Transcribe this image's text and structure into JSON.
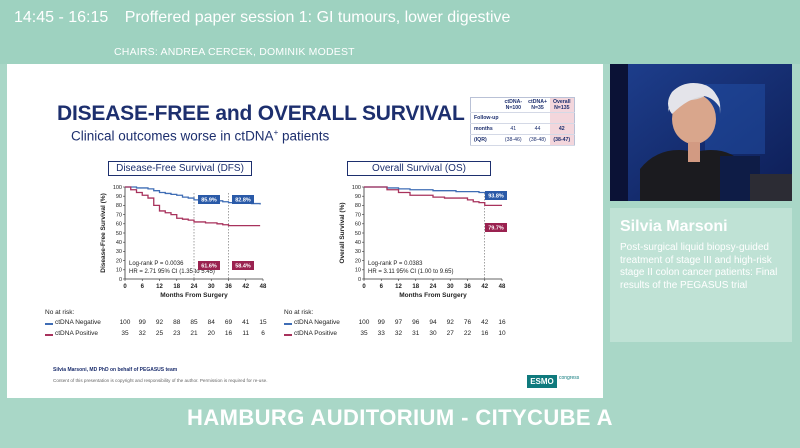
{
  "session": {
    "time": "14:45 - 16:15",
    "title": "Proffered paper session 1: GI tumours, lower digestive",
    "chairs": "CHAIRS: ANDREA CERCEK, DOMINIK MODEST"
  },
  "slide": {
    "title": "DISEASE-FREE and OVERALL SURVIVAL",
    "subtitle_pre": "Clinical outcomes worse in ctDNA",
    "subtitle_sup": "+",
    "subtitle_post": " patients",
    "followup_table": {
      "header": [
        "",
        "ctDNA-\nN=100",
        "ctDNA+\nN=35",
        "Overall\nN=135"
      ],
      "rows": [
        [
          "Follow-up",
          "",
          "",
          ""
        ],
        [
          "months",
          "41",
          "44",
          "42"
        ],
        [
          "(IQR)",
          "(38-46)",
          "(38-48)",
          "(38-47)"
        ]
      ]
    },
    "author": "Silvia Marsoni, MD PhD on behalf of PEGASUS team",
    "copyright": "Content of this presentation is copyright and responsibility of the author. Permission is required for re-use.",
    "logo_text": "ESMO",
    "logo_sub": "congress",
    "panels": [
      {
        "title": "Disease-Free Survival (DFS)",
        "ylabel": "Disease-Free Survival (%)",
        "xlabel": "Months From Surgery",
        "stats_line1": "Log-rank P = 0.0036",
        "stats_line2": "HR = 2.71 95% CI (1.35 to 5.45)",
        "badges": [
          {
            "text": "85.9%",
            "color": "#2a5aa8"
          },
          {
            "text": "82.8%",
            "color": "#2a5aa8"
          },
          {
            "text": "61.6%",
            "color": "#9a2250"
          },
          {
            "text": "58.4%",
            "color": "#9a2250"
          }
        ]
      },
      {
        "title": "Overall Survival (OS)",
        "ylabel": "Overall Survival (%)",
        "xlabel": "Months From Surgery",
        "stats_line1": "Log-rank P = 0.0383",
        "stats_line2": "HR = 3.11 95% CI (1.00 to 9.65)",
        "badges": [
          {
            "text": "93.8%",
            "color": "#2a5aa8"
          },
          {
            "text": "79.7%",
            "color": "#9a2250"
          }
        ]
      }
    ],
    "risk_tables": [
      {
        "header": "No at risk:",
        "rows": [
          {
            "label": "ctDNA Negative",
            "color": "#3f6db5",
            "values": [
              "100",
              "99",
              "92",
              "88",
              "85",
              "84",
              "69",
              "41",
              "15"
            ]
          },
          {
            "label": "ctDNA Positive",
            "color": "#a8325c",
            "values": [
              "35",
              "32",
              "25",
              "23",
              "21",
              "20",
              "16",
              "11",
              "6"
            ]
          }
        ]
      },
      {
        "header": "No at risk:",
        "rows": [
          {
            "label": "ctDNA Negative",
            "color": "#3f6db5",
            "values": [
              "100",
              "99",
              "97",
              "96",
              "94",
              "92",
              "76",
              "42",
              "16"
            ]
          },
          {
            "label": "ctDNA Positive",
            "color": "#a8325c",
            "values": [
              "35",
              "33",
              "32",
              "31",
              "30",
              "27",
              "22",
              "16",
              "10"
            ]
          }
        ]
      }
    ]
  },
  "chart_data": [
    {
      "type": "line",
      "title": "Disease-Free Survival (DFS)",
      "xlabel": "Months From Surgery",
      "ylabel": "Disease-Free Survival (%)",
      "xlim": [
        0,
        48
      ],
      "ylim": [
        0,
        100
      ],
      "xticks": [
        "0",
        "6",
        "12",
        "18",
        "24",
        "30",
        "36",
        "42",
        "48"
      ],
      "yticks": [
        "0",
        "10",
        "20",
        "30",
        "40",
        "50",
        "60",
        "70",
        "80",
        "90",
        "100"
      ],
      "series": [
        {
          "name": "ctDNA Negative",
          "color": "#3f6db5",
          "x": [
            0,
            2,
            4,
            6,
            8,
            10,
            12,
            14,
            16,
            18,
            20,
            22,
            24,
            26,
            28,
            30,
            32,
            34,
            36,
            38,
            40,
            42,
            44,
            46,
            47
          ],
          "y": [
            100,
            100,
            99,
            99,
            98,
            96,
            94,
            93,
            92,
            91,
            89,
            88,
            86,
            86,
            86,
            85,
            85,
            84,
            83,
            83,
            83,
            83,
            82,
            82,
            81
          ]
        },
        {
          "name": "ctDNA Positive",
          "color": "#a8325c",
          "x": [
            0,
            2,
            4,
            6,
            8,
            10,
            12,
            14,
            16,
            18,
            20,
            22,
            24,
            26,
            28,
            30,
            32,
            34,
            36,
            38,
            40,
            42,
            44,
            46,
            47
          ],
          "y": [
            100,
            97,
            94,
            91,
            88,
            80,
            74,
            72,
            70,
            66,
            65,
            64,
            62,
            62,
            61,
            61,
            60,
            59,
            58,
            58,
            58,
            58,
            58,
            58,
            58
          ]
        }
      ],
      "markers_x": [
        24,
        36
      ],
      "annotations": [
        "85.9%",
        "82.8%",
        "61.6%",
        "58.4%"
      ],
      "stats": [
        "Log-rank P = 0.0036",
        "HR = 2.71 95% CI (1.35 to 5.45)"
      ]
    },
    {
      "type": "line",
      "title": "Overall Survival (OS)",
      "xlabel": "Months From Surgery",
      "ylabel": "Overall Survival (%)",
      "xlim": [
        0,
        48
      ],
      "ylim": [
        0,
        100
      ],
      "xticks": [
        "0",
        "6",
        "12",
        "18",
        "24",
        "30",
        "36",
        "42",
        "48"
      ],
      "yticks": [
        "0",
        "10",
        "20",
        "30",
        "40",
        "50",
        "60",
        "70",
        "80",
        "90",
        "100"
      ],
      "series": [
        {
          "name": "ctDNA Negative",
          "color": "#3f6db5",
          "x": [
            0,
            4,
            8,
            12,
            16,
            20,
            24,
            28,
            32,
            36,
            40,
            42,
            44,
            46,
            48
          ],
          "y": [
            100,
            100,
            99,
            98,
            97,
            97,
            96,
            96,
            95,
            95,
            94,
            94,
            94,
            93,
            93
          ]
        },
        {
          "name": "ctDNA Positive",
          "color": "#a8325c",
          "x": [
            0,
            4,
            8,
            12,
            16,
            20,
            24,
            28,
            32,
            36,
            38,
            40,
            42,
            44,
            46,
            48
          ],
          "y": [
            100,
            100,
            97,
            94,
            91,
            91,
            89,
            88,
            88,
            86,
            84,
            83,
            80,
            80,
            80,
            80
          ]
        }
      ],
      "markers_x": [
        42
      ],
      "annotations": [
        "93.8%",
        "79.7%"
      ],
      "stats": [
        "Log-rank P = 0.0383",
        "HR = 3.11 95% CI (1.00 to 9.65)"
      ]
    }
  ],
  "speaker": {
    "name": "Silvia Marsoni",
    "talk": "Post-surgical liquid biopsy-guided treatment of stage III and high-risk stage II colon cancer patients: Final results of the PEGASUS trial"
  },
  "room": "HAMBURG AUDITORIUM - CITYCUBE A"
}
